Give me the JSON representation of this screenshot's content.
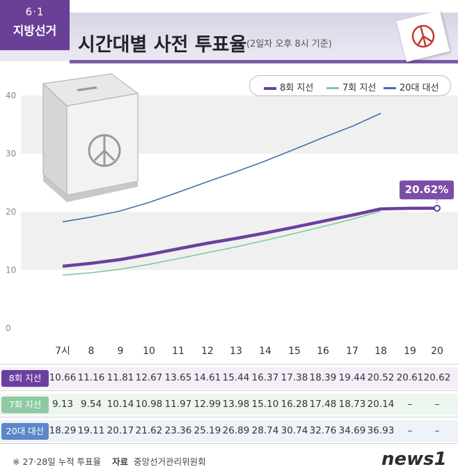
{
  "header": {
    "badge_line1": "6·1",
    "badge_line2": "지방선거",
    "title": "시간대별 사전 투표율",
    "subtitle": "(2일차 오후 8시 기준)"
  },
  "legend": {
    "items": [
      {
        "label": "8회 지선",
        "color": "#6b3fa0"
      },
      {
        "label": "7회 지선",
        "color": "#7fc89b"
      },
      {
        "label": "20대 대선",
        "color": "#3f6eb5"
      }
    ]
  },
  "callout": {
    "text": "20.62%"
  },
  "chart_data": {
    "type": "line",
    "categories": [
      "7시",
      "8",
      "9",
      "10",
      "11",
      "12",
      "13",
      "14",
      "15",
      "16",
      "17",
      "18",
      "19",
      "20"
    ],
    "y_ticks": [
      "0",
      "10",
      "20",
      "30",
      "40"
    ],
    "ylim": [
      0,
      40
    ],
    "series": [
      {
        "name": "8회 지선",
        "color": "#6b3fa0",
        "values": [
          10.66,
          11.16,
          11.81,
          12.67,
          13.65,
          14.61,
          15.44,
          16.37,
          17.38,
          18.39,
          19.44,
          20.52,
          20.61,
          20.62
        ]
      },
      {
        "name": "7회 지선",
        "color": "#7fc89b",
        "values": [
          9.13,
          9.54,
          10.14,
          10.98,
          11.97,
          12.99,
          13.98,
          15.1,
          16.28,
          17.48,
          18.73,
          20.14,
          null,
          null
        ]
      },
      {
        "name": "20대 대선",
        "color": "#3f6eb5",
        "values": [
          18.29,
          19.11,
          20.17,
          21.62,
          23.36,
          25.19,
          26.89,
          28.74,
          30.74,
          32.76,
          34.69,
          36.93,
          null,
          null
        ]
      }
    ]
  },
  "table": {
    "columns": [
      "7시",
      "8",
      "9",
      "10",
      "11",
      "12",
      "13",
      "14",
      "15",
      "16",
      "17",
      "18",
      "19",
      "20"
    ],
    "rows": [
      {
        "label": "8회 지선",
        "label_color": "#6b3fa0",
        "bg": "#f3eef8",
        "cells": [
          "10.66",
          "11.16",
          "11.81",
          "12.67",
          "13.65",
          "14.61",
          "15.44",
          "16.37",
          "17.38",
          "18.39",
          "19.44",
          "20.52",
          "20.61",
          "20.62"
        ]
      },
      {
        "label": "7회 지선",
        "label_color": "#8fc9a4",
        "bg": "#eef6f0",
        "cells": [
          "9.13",
          "9.54",
          "10.14",
          "10.98",
          "11.97",
          "12.99",
          "13.98",
          "15.10",
          "16.28",
          "17.48",
          "18.73",
          "20.14",
          "–",
          "–"
        ]
      },
      {
        "label": "20대 대선",
        "label_color": "#5b86c8",
        "bg": "#eef2f9",
        "cells": [
          "18.29",
          "19.11",
          "20.17",
          "21.62",
          "23.36",
          "25.19",
          "26.89",
          "28.74",
          "30.74",
          "32.76",
          "34.69",
          "36.93",
          "–",
          "–"
        ]
      }
    ]
  },
  "footer": {
    "note": "※ 27·28일 누적 투표율",
    "source_label": "자료",
    "source": "중앙선거관리위원회",
    "logo": "news1"
  }
}
